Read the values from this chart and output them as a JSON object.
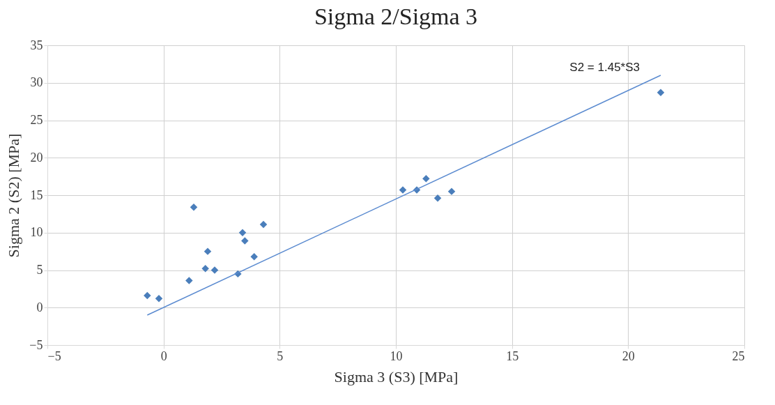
{
  "chart_data": {
    "type": "scatter",
    "title": "Sigma 2/Sigma 3",
    "xlabel": "Sigma 3 (S3) [MPa]",
    "ylabel": "Sigma 2 (S2) [MPa]",
    "xlim": [
      -5,
      25
    ],
    "ylim": [
      -5,
      35
    ],
    "xticks": [
      -5,
      0,
      5,
      10,
      15,
      20,
      25
    ],
    "yticks": [
      -5,
      0,
      5,
      10,
      15,
      20,
      25,
      30,
      35
    ],
    "grid": true,
    "series": [
      {
        "color": "#4a7ebb",
        "marker": "diamond",
        "x": [
          -0.7,
          -0.2,
          1.1,
          1.3,
          1.8,
          1.9,
          2.2,
          3.2,
          3.4,
          3.5,
          3.9,
          4.3,
          10.3,
          10.9,
          11.3,
          11.8,
          12.4,
          21.4
        ],
        "values": [
          1.6,
          1.2,
          3.6,
          13.4,
          5.2,
          7.5,
          5.0,
          4.5,
          10.0,
          8.9,
          6.8,
          11.1,
          15.7,
          15.7,
          17.2,
          14.6,
          15.5,
          28.7
        ]
      },
      {
        "type": "line",
        "name": "S2 = 1.45*S3",
        "color": "#5b8bd0",
        "marker": "none",
        "x": [
          -0.7,
          21.4
        ],
        "values": [
          -1.0,
          31.0
        ]
      }
    ]
  }
}
